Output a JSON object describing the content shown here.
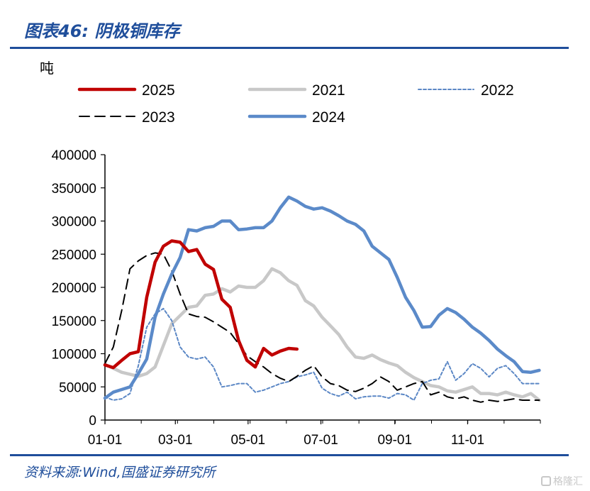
{
  "header": {
    "title": "图表46:  阴极铜库存"
  },
  "footer": {
    "source": "资料来源:Wind,国盛证券研究所",
    "watermark": "格隆汇"
  },
  "colors": {
    "brand": "#1f4e9b",
    "s2025": "#c00000",
    "s2021": "#c8c8c8",
    "s2022": "#5b87c5",
    "s2023": "#000000",
    "s2024": "#5b8ac9"
  },
  "chart_data": {
    "type": "line",
    "title": "",
    "ylabel": "吨",
    "ylim": [
      0,
      400000
    ],
    "yticks": [
      0,
      50000,
      100000,
      150000,
      200000,
      250000,
      300000,
      350000,
      400000
    ],
    "xticks": [
      "01-01",
      "03-01",
      "05-01",
      "07-01",
      "09-01",
      "11-01"
    ],
    "x_unit": "week_of_year",
    "legend": [
      "2025",
      "2021",
      "2022",
      "2023",
      "2024"
    ],
    "legend_position": "top",
    "grid": false,
    "series": [
      {
        "name": "2025",
        "style": "solid-thick",
        "color": "#c00000",
        "x": [
          0,
          1,
          2,
          3,
          4,
          5,
          6,
          7,
          8,
          9,
          10,
          11,
          12,
          13,
          14,
          15,
          16,
          17,
          18,
          19,
          20,
          21,
          22,
          23
        ],
        "values": [
          83000,
          79000,
          90000,
          100000,
          103000,
          185000,
          238000,
          262000,
          270000,
          268000,
          254000,
          257000,
          235000,
          227000,
          182000,
          170000,
          120000,
          90000,
          80000,
          108000,
          98000,
          104000,
          108000,
          107000
        ]
      },
      {
        "name": "2021",
        "style": "solid-light",
        "color": "#c8c8c8",
        "x": [
          0,
          2,
          4,
          5,
          6,
          8,
          10,
          11,
          12,
          13,
          14,
          15,
          16,
          17,
          18,
          19,
          20,
          21,
          22,
          23,
          24,
          25,
          26,
          27,
          28,
          29,
          30,
          31,
          32,
          33,
          34,
          35,
          36,
          37,
          38,
          39,
          40,
          41,
          42,
          43,
          44,
          45,
          46,
          47,
          48,
          49,
          50,
          51,
          52
        ],
        "values": [
          84000,
          72000,
          66000,
          70000,
          80000,
          145000,
          170000,
          172000,
          188000,
          190000,
          198000,
          193000,
          202000,
          200000,
          200000,
          210000,
          228000,
          222000,
          210000,
          203000,
          180000,
          172000,
          155000,
          142000,
          129000,
          110000,
          95000,
          93000,
          98000,
          91000,
          86000,
          82000,
          72000,
          64000,
          58000,
          52000,
          50000,
          44000,
          42000,
          46000,
          50000,
          40000,
          40000,
          38000,
          42000,
          38000,
          35000,
          40000,
          30000
        ]
      },
      {
        "name": "2022",
        "style": "dotted",
        "color": "#5b87c5",
        "x": [
          0,
          1,
          2,
          3,
          4,
          5,
          6,
          7,
          8,
          9,
          10,
          11,
          12,
          13,
          14,
          15,
          16,
          17,
          18,
          19,
          20,
          21,
          22,
          23,
          24,
          25,
          26,
          27,
          28,
          29,
          30,
          31,
          32,
          33,
          34,
          35,
          36,
          37,
          38,
          39,
          40,
          41,
          42,
          43,
          44,
          45,
          46,
          47,
          48,
          49,
          50,
          51,
          52
        ],
        "values": [
          35000,
          30000,
          32000,
          40000,
          82000,
          140000,
          160000,
          168000,
          150000,
          110000,
          95000,
          92000,
          95000,
          80000,
          50000,
          52000,
          55000,
          55000,
          42000,
          45000,
          50000,
          55000,
          58000,
          65000,
          68000,
          72000,
          48000,
          40000,
          36000,
          42000,
          32000,
          35000,
          36000,
          36000,
          33000,
          40000,
          38000,
          30000,
          55000,
          60000,
          62000,
          88000,
          60000,
          70000,
          85000,
          78000,
          65000,
          78000,
          82000,
          70000,
          55000,
          55000,
          55000
        ]
      },
      {
        "name": "2023",
        "style": "dashed",
        "color": "#000000",
        "x": [
          0,
          1,
          2,
          3,
          4,
          5,
          6,
          7,
          8,
          9,
          10,
          11,
          12,
          13,
          14,
          15,
          16,
          17,
          18,
          19,
          20,
          21,
          22,
          23,
          24,
          25,
          26,
          27,
          28,
          29,
          30,
          31,
          32,
          33,
          34,
          35,
          36,
          37,
          38,
          39,
          40,
          41,
          42,
          43,
          44,
          45,
          46,
          47,
          48,
          49,
          50,
          51,
          52
        ],
        "values": [
          85000,
          110000,
          165000,
          228000,
          240000,
          248000,
          252000,
          250000,
          225000,
          190000,
          160000,
          156000,
          155000,
          148000,
          140000,
          132000,
          115000,
          97000,
          88000,
          80000,
          70000,
          63000,
          58000,
          66000,
          75000,
          82000,
          65000,
          55000,
          52000,
          45000,
          43000,
          48000,
          55000,
          65000,
          58000,
          45000,
          50000,
          55000,
          58000,
          38000,
          42000,
          35000,
          32000,
          35000,
          30000,
          27000,
          30000,
          28000,
          30000,
          32000,
          30000,
          30000,
          30000
        ]
      },
      {
        "name": "2024",
        "style": "solid-thick",
        "color": "#5b8ac9",
        "x": [
          0,
          1,
          2,
          3,
          4,
          5,
          6,
          7,
          8,
          9,
          10,
          11,
          12,
          13,
          14,
          15,
          16,
          17,
          18,
          19,
          20,
          21,
          22,
          23,
          24,
          25,
          26,
          27,
          28,
          29,
          30,
          31,
          32,
          33,
          34,
          35,
          36,
          37,
          38,
          39,
          40,
          41,
          42,
          43,
          44,
          45,
          46,
          47,
          48,
          49,
          50,
          51,
          52
        ],
        "values": [
          33000,
          42000,
          46000,
          50000,
          70000,
          92000,
          155000,
          190000,
          220000,
          245000,
          287000,
          285000,
          290000,
          292000,
          300000,
          300000,
          287000,
          288000,
          290000,
          290000,
          300000,
          320000,
          336000,
          330000,
          322000,
          318000,
          320000,
          315000,
          308000,
          300000,
          295000,
          285000,
          262000,
          252000,
          242000,
          215000,
          185000,
          165000,
          140000,
          141000,
          158000,
          168000,
          162000,
          152000,
          140000,
          131000,
          120000,
          107000,
          97000,
          88000,
          73000,
          72000,
          75000
        ]
      }
    ]
  }
}
